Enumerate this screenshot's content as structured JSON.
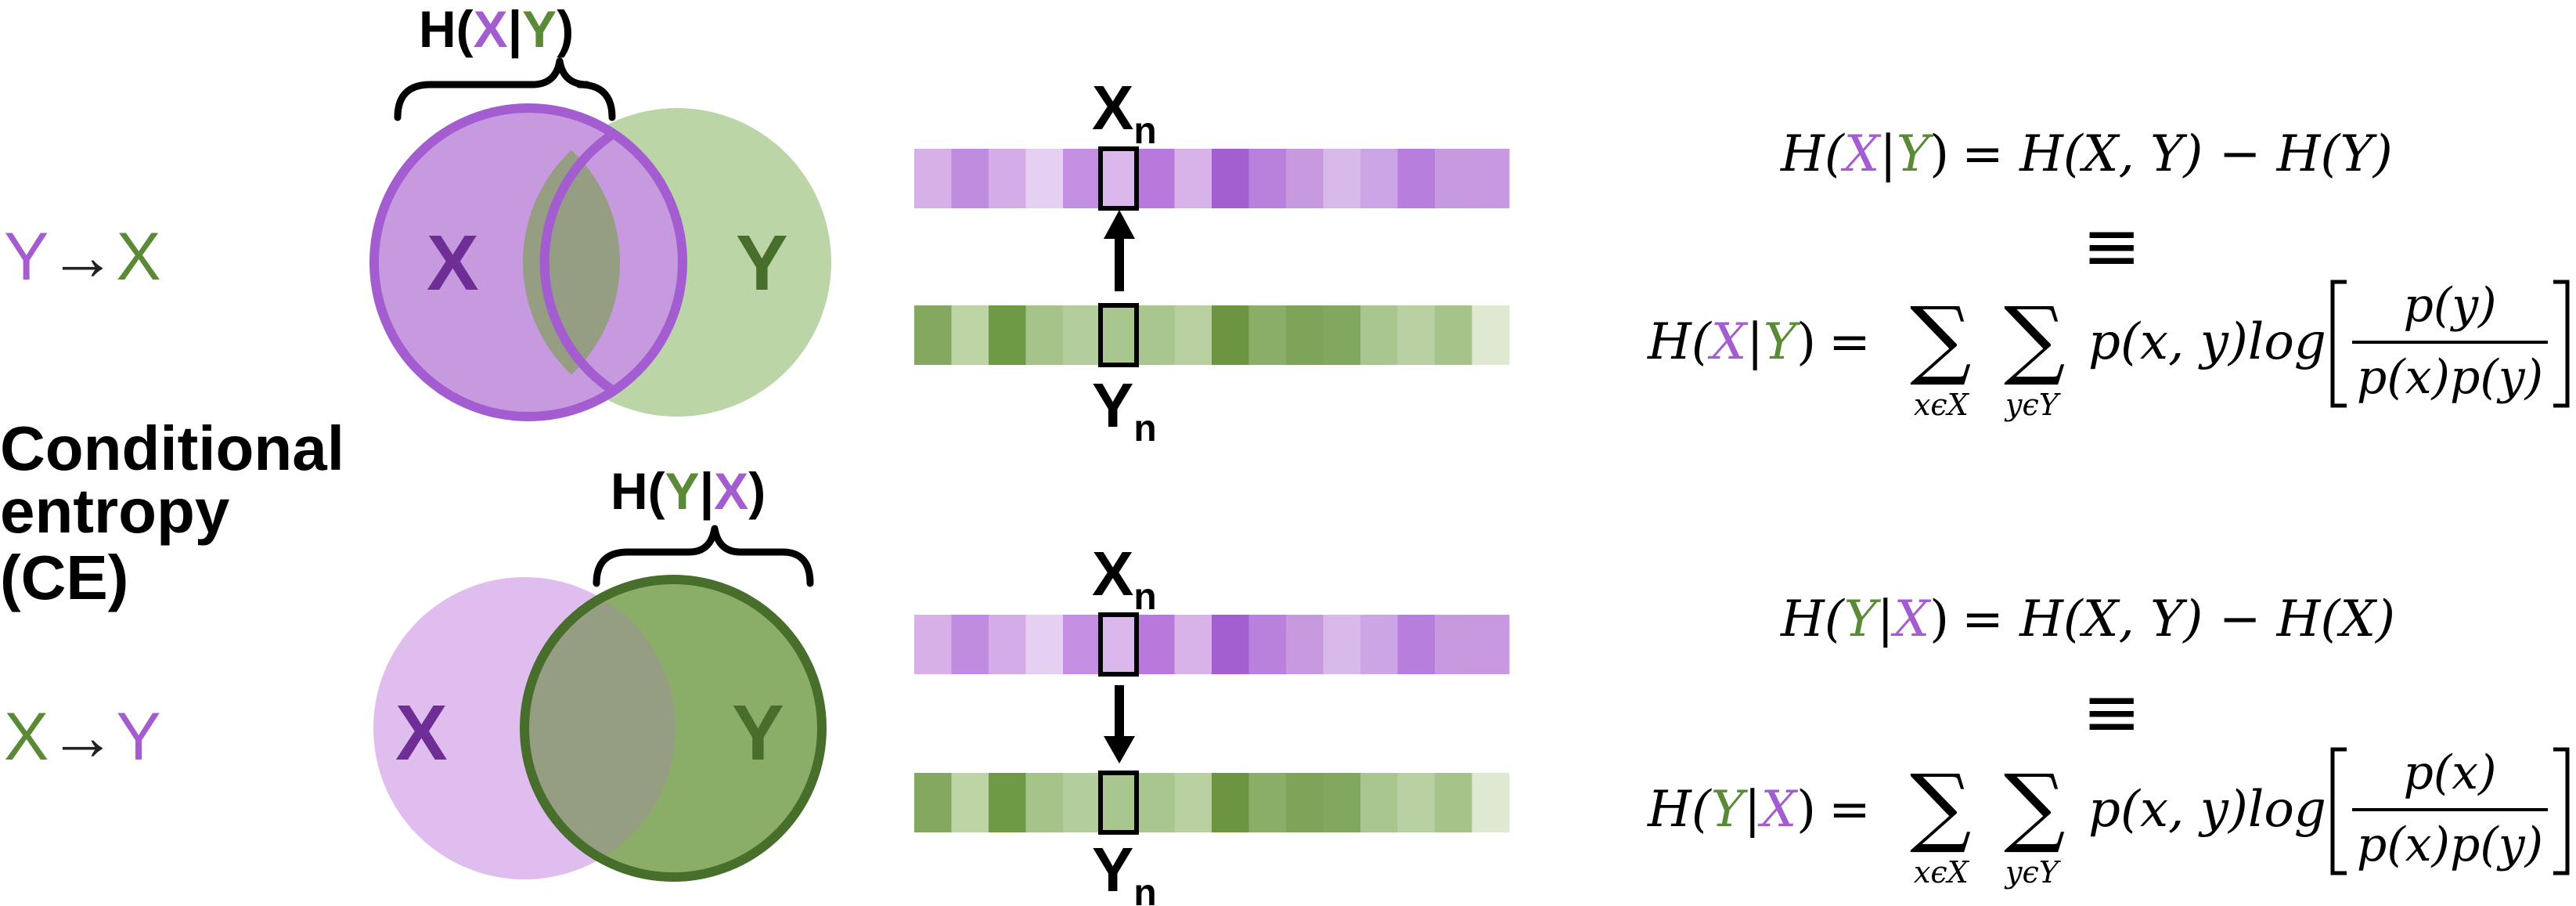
{
  "colors": {
    "purple": "#a35dd0",
    "purple_fill": "#c79ae0",
    "purple_light": "#e0bdef",
    "purple_dark": "#6f2d96",
    "green": "#5a8a35",
    "green_fill": "#bcd5a6",
    "green_dark": "#476e2a",
    "overlap": "#959d83",
    "black": "#000000"
  },
  "title": {
    "line1": "Conditional",
    "line2": "entropy",
    "line3": "(CE)"
  },
  "top": {
    "direction": {
      "from": "Y",
      "arrow": "→",
      "to": "X"
    },
    "brace_label": {
      "prefix": "H(",
      "first": "X",
      "sep": "|",
      "second": "Y",
      "suffix": ")"
    },
    "venn_left": "X",
    "venn_right": "Y",
    "seq_top_label": "X",
    "seq_top_sub": "n",
    "seq_bottom_label": "Y",
    "seq_bottom_sub": "n",
    "arrow_direction": "up",
    "purple_cells": [
      "#d7b0e8",
      "#c08ce0",
      "#d4ace8",
      "#e6d0f1",
      "#c48fe0",
      "#dbb8ec",
      "#b979dc",
      "#d7b3ea",
      "#a35ed0",
      "#b980dc",
      "#c79ae0",
      "#d8b9ea",
      "#cca5e6",
      "#b77edc",
      "#c79ae0",
      "#c898e0"
    ],
    "green_cells": [
      "#84a860",
      "#bdd4a4",
      "#6f9a45",
      "#a6c38a",
      "#b4cd9c",
      "#a8c68e",
      "#a8c68e",
      "#b8d0a0",
      "#6c9541",
      "#8aae67",
      "#7ea45a",
      "#82a75e",
      "#a8c68e",
      "#b9d1a2",
      "#a6c38a",
      "#dfe9d2"
    ],
    "formula_a": {
      "lhs_pre": "H(",
      "lhs_a": "X",
      "lhs_sep": "|",
      "lhs_b": "Y",
      "lhs_post": ")",
      "rhs": "= H(X, Y) − H(Y)"
    },
    "equiv": "≡",
    "formula_b": {
      "lhs_pre": "H(",
      "lhs_a": "X",
      "lhs_sep": "|",
      "lhs_b": "Y",
      "lhs_post": ")",
      "eq": "=",
      "sum": "∑",
      "sub1": "xϵX",
      "sub2": "yϵY",
      "term": "p(x, y)log",
      "num": "p(y)",
      "den": "p(x)p(y)"
    }
  },
  "bottom": {
    "direction": {
      "from": "X",
      "arrow": "→",
      "to": "Y"
    },
    "brace_label": {
      "prefix": "H(",
      "first": "Y",
      "sep": "|",
      "second": "X",
      "suffix": ")"
    },
    "venn_left": "X",
    "venn_right": "Y",
    "seq_top_label": "X",
    "seq_top_sub": "n",
    "seq_bottom_label": "Y",
    "seq_bottom_sub": "n",
    "arrow_direction": "down",
    "formula_a": {
      "lhs_pre": "H(",
      "lhs_a": "Y",
      "lhs_sep": "|",
      "lhs_b": "X",
      "lhs_post": ")",
      "rhs": "= H(X, Y) − H(X)"
    },
    "equiv": "≡",
    "formula_b": {
      "lhs_pre": "H(",
      "lhs_a": "Y",
      "lhs_sep": "|",
      "lhs_b": "X",
      "lhs_post": ")",
      "eq": "=",
      "sum": "∑",
      "sub1": "xϵX",
      "sub2": "yϵY",
      "term": "p(x, y)log",
      "num": "p(x)",
      "den": "p(x)p(y)"
    }
  }
}
